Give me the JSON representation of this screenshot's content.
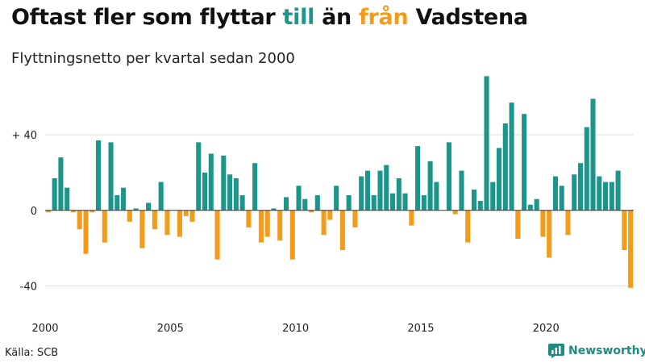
{
  "title": {
    "part1": "Oftast fler som flyttar ",
    "part2": "till",
    "part3": " än ",
    "part4": "från",
    "part5": " Vadstena"
  },
  "subtitle": "Flyttningsnetto per kvartal sedan 2000",
  "source": "Källa: SCB",
  "brand": "Newsworthy",
  "colors": {
    "positive": "#1c968a",
    "negative": "#f39c1b",
    "title_till": "#1c968a",
    "title_fran": "#f39c1b",
    "grid": "#dddddd",
    "zero_line": "#333333",
    "brand": "#1f8a80"
  },
  "chart_data": {
    "type": "bar",
    "title": "Oftast fler som flyttar till än från Vadstena",
    "subtitle": "Flyttningsnetto per kvartal sedan 2000",
    "ylim": [
      -53,
      75
    ],
    "yticks": [
      {
        "value": 40,
        "label": "+ 40"
      },
      {
        "value": 0,
        "label": "0"
      },
      {
        "value": -40,
        "label": "-40"
      }
    ],
    "xticks": [
      "2000",
      "2005",
      "2010",
      "2015",
      "2020"
    ],
    "grid": true,
    "start": "2000 Q1",
    "categories": [
      "2000 Q1",
      "2000 Q2",
      "2000 Q3",
      "2000 Q4",
      "2001 Q1",
      "2001 Q2",
      "2001 Q3",
      "2001 Q4",
      "2002 Q1",
      "2002 Q2",
      "2002 Q3",
      "2002 Q4",
      "2003 Q1",
      "2003 Q2",
      "2003 Q3",
      "2003 Q4",
      "2004 Q1",
      "2004 Q2",
      "2004 Q3",
      "2004 Q4",
      "2005 Q1",
      "2005 Q2",
      "2005 Q3",
      "2005 Q4",
      "2006 Q1",
      "2006 Q2",
      "2006 Q3",
      "2006 Q4",
      "2007 Q1",
      "2007 Q2",
      "2007 Q3",
      "2007 Q4",
      "2008 Q1",
      "2008 Q2",
      "2008 Q3",
      "2008 Q4",
      "2009 Q1",
      "2009 Q2",
      "2009 Q3",
      "2009 Q4",
      "2010 Q1",
      "2010 Q2",
      "2010 Q3",
      "2010 Q4",
      "2011 Q1",
      "2011 Q2",
      "2011 Q3",
      "2011 Q4",
      "2012 Q1",
      "2012 Q2",
      "2012 Q3",
      "2012 Q4",
      "2013 Q1",
      "2013 Q2",
      "2013 Q3",
      "2013 Q4",
      "2014 Q1",
      "2014 Q2",
      "2014 Q3",
      "2014 Q4",
      "2015 Q1",
      "2015 Q2",
      "2015 Q3",
      "2015 Q4",
      "2016 Q1",
      "2016 Q2",
      "2016 Q3",
      "2016 Q4",
      "2017 Q1",
      "2017 Q2",
      "2017 Q3",
      "2017 Q4",
      "2018 Q1",
      "2018 Q2",
      "2018 Q3",
      "2018 Q4",
      "2019 Q1",
      "2019 Q2",
      "2019 Q3",
      "2019 Q4",
      "2020 Q1",
      "2020 Q2",
      "2020 Q3",
      "2020 Q4",
      "2021 Q1",
      "2021 Q2",
      "2021 Q3",
      "2021 Q4",
      "2022 Q1",
      "2022 Q2",
      "2022 Q3",
      "2022 Q4",
      "2023 Q1",
      "2023 Q2"
    ],
    "values": [
      -1,
      17,
      28,
      12,
      -1,
      -10,
      -23,
      -1,
      37,
      -17,
      36,
      8,
      12,
      -6,
      1,
      -20,
      4,
      -10,
      15,
      -13,
      0,
      -14,
      -3,
      -6,
      36,
      20,
      30,
      -26,
      29,
      19,
      17,
      8,
      -9,
      25,
      -17,
      -14,
      1,
      -16,
      7,
      -26,
      13,
      6,
      -1,
      8,
      -13,
      -5,
      13,
      -21,
      8,
      -9,
      18,
      21,
      8,
      21,
      24,
      9,
      17,
      9,
      -8,
      34,
      8,
      26,
      15,
      0,
      36,
      -2,
      21,
      -17,
      11,
      5,
      71,
      15,
      33,
      46,
      57,
      -15,
      51,
      3,
      6,
      -14,
      -25,
      18,
      13,
      -13,
      19,
      25,
      44,
      59,
      18,
      15,
      15,
      21,
      -21,
      -41
    ]
  }
}
